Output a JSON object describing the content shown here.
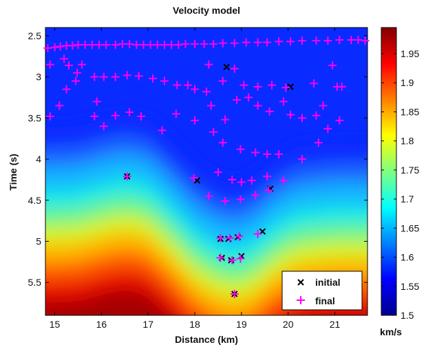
{
  "chart_data": {
    "type": "heatmap",
    "title": "Velocity model",
    "xlabel": "Distance (km)",
    "ylabel": "Time (s)",
    "xlim": [
      14.8,
      21.7
    ],
    "ylim": [
      2.4,
      5.9
    ],
    "y_reversed": true,
    "x_ticks": [
      15,
      16,
      17,
      18,
      19,
      20,
      21
    ],
    "y_ticks": [
      2.5,
      3,
      3.5,
      4,
      4.5,
      5,
      5.5
    ],
    "colorbar": {
      "range": [
        1.5,
        1.995
      ],
      "ticks": [
        1.5,
        1.55,
        1.6,
        1.65,
        1.7,
        1.75,
        1.8,
        1.85,
        1.9,
        1.95
      ],
      "unit_label": "km/s",
      "colormap": "jet"
    },
    "legend": {
      "position": "bottom-right",
      "entries": [
        {
          "label": "initial",
          "marker": "x",
          "color": "#000000"
        },
        {
          "label": "final",
          "marker": "+",
          "color": "#ff00ff"
        }
      ]
    },
    "velocity_interface": [
      [
        14.8,
        4.82
      ],
      [
        15.5,
        4.8
      ],
      [
        16.0,
        4.72
      ],
      [
        16.5,
        4.66
      ],
      [
        17.0,
        4.72
      ],
      [
        17.5,
        4.98
      ],
      [
        18.0,
        5.28
      ],
      [
        18.5,
        5.45
      ],
      [
        18.9,
        5.5
      ],
      [
        19.3,
        5.4
      ],
      [
        19.7,
        5.2
      ],
      [
        20.2,
        5.05
      ],
      [
        21.0,
        5.0
      ],
      [
        21.7,
        5.0
      ]
    ],
    "series": [
      {
        "name": "initial",
        "marker": "x",
        "points": [
          [
            16.55,
            4.21
          ],
          [
            18.05,
            4.26
          ],
          [
            18.68,
            2.88
          ],
          [
            20.05,
            3.12
          ],
          [
            19.62,
            4.36
          ],
          [
            18.55,
            4.97
          ],
          [
            18.72,
            4.97
          ],
          [
            18.92,
            4.95
          ],
          [
            19.45,
            4.88
          ],
          [
            18.58,
            5.2
          ],
          [
            18.78,
            5.23
          ],
          [
            19.0,
            5.18
          ],
          [
            18.85,
            5.64
          ]
        ]
      },
      {
        "name": "final",
        "marker": "+",
        "points": [
          [
            14.85,
            2.65
          ],
          [
            15.0,
            2.64
          ],
          [
            15.12,
            2.63
          ],
          [
            15.25,
            2.62
          ],
          [
            15.38,
            2.62
          ],
          [
            15.5,
            2.61
          ],
          [
            15.65,
            2.61
          ],
          [
            15.8,
            2.61
          ],
          [
            15.95,
            2.61
          ],
          [
            16.1,
            2.61
          ],
          [
            16.3,
            2.61
          ],
          [
            16.45,
            2.6
          ],
          [
            16.6,
            2.6
          ],
          [
            16.75,
            2.61
          ],
          [
            16.9,
            2.61
          ],
          [
            17.05,
            2.61
          ],
          [
            17.2,
            2.61
          ],
          [
            17.35,
            2.61
          ],
          [
            17.5,
            2.61
          ],
          [
            17.65,
            2.61
          ],
          [
            17.8,
            2.6
          ],
          [
            18.0,
            2.6
          ],
          [
            18.2,
            2.6
          ],
          [
            18.4,
            2.6
          ],
          [
            18.6,
            2.59
          ],
          [
            18.85,
            2.59
          ],
          [
            19.1,
            2.58
          ],
          [
            19.35,
            2.58
          ],
          [
            19.55,
            2.58
          ],
          [
            19.8,
            2.57
          ],
          [
            20.05,
            2.57
          ],
          [
            20.3,
            2.56
          ],
          [
            20.6,
            2.56
          ],
          [
            20.85,
            2.56
          ],
          [
            21.1,
            2.55
          ],
          [
            21.35,
            2.55
          ],
          [
            21.5,
            2.55
          ],
          [
            21.65,
            2.56
          ],
          [
            14.9,
            2.85
          ],
          [
            15.3,
            2.86
          ],
          [
            15.48,
            2.95
          ],
          [
            15.58,
            2.85
          ],
          [
            15.2,
            2.78
          ],
          [
            15.45,
            3.05
          ],
          [
            15.25,
            3.15
          ],
          [
            15.85,
            3.0
          ],
          [
            16.05,
            3.0
          ],
          [
            16.3,
            3.0
          ],
          [
            16.55,
            2.98
          ],
          [
            16.8,
            2.99
          ],
          [
            17.1,
            3.02
          ],
          [
            17.35,
            3.05
          ],
          [
            17.62,
            3.1
          ],
          [
            17.85,
            3.1
          ],
          [
            18.0,
            3.15
          ],
          [
            18.25,
            3.18
          ],
          [
            18.6,
            3.05
          ],
          [
            18.85,
            2.9
          ],
          [
            18.3,
            2.85
          ],
          [
            19.05,
            3.1
          ],
          [
            19.35,
            3.12
          ],
          [
            19.65,
            3.1
          ],
          [
            19.95,
            3.13
          ],
          [
            20.55,
            3.08
          ],
          [
            20.95,
            2.86
          ],
          [
            21.05,
            3.12
          ],
          [
            21.15,
            3.12
          ],
          [
            14.9,
            3.48
          ],
          [
            15.1,
            3.35
          ],
          [
            15.9,
            3.3
          ],
          [
            15.85,
            3.48
          ],
          [
            16.05,
            3.6
          ],
          [
            16.3,
            3.47
          ],
          [
            16.6,
            3.43
          ],
          [
            16.85,
            3.48
          ],
          [
            17.3,
            3.65
          ],
          [
            17.6,
            3.45
          ],
          [
            18.0,
            3.53
          ],
          [
            18.35,
            3.35
          ],
          [
            18.4,
            3.67
          ],
          [
            18.65,
            3.52
          ],
          [
            18.9,
            3.28
          ],
          [
            19.15,
            3.25
          ],
          [
            19.35,
            3.35
          ],
          [
            19.6,
            3.42
          ],
          [
            19.9,
            3.3
          ],
          [
            20.05,
            3.46
          ],
          [
            20.3,
            3.5
          ],
          [
            20.6,
            3.47
          ],
          [
            20.75,
            3.35
          ],
          [
            20.85,
            3.63
          ],
          [
            21.1,
            3.53
          ],
          [
            20.65,
            3.8
          ],
          [
            18.6,
            3.8
          ],
          [
            18.98,
            3.88
          ],
          [
            19.3,
            3.92
          ],
          [
            19.55,
            3.94
          ],
          [
            19.8,
            3.94
          ],
          [
            20.3,
            4.0
          ],
          [
            16.55,
            4.21
          ],
          [
            17.98,
            4.23
          ],
          [
            18.5,
            4.16
          ],
          [
            18.8,
            4.25
          ],
          [
            19.0,
            4.28
          ],
          [
            19.22,
            4.26
          ],
          [
            19.55,
            4.21
          ],
          [
            19.9,
            4.26
          ],
          [
            18.3,
            4.45
          ],
          [
            18.65,
            4.51
          ],
          [
            18.98,
            4.49
          ],
          [
            19.3,
            4.44
          ],
          [
            19.58,
            4.38
          ],
          [
            18.55,
            4.96
          ],
          [
            18.75,
            4.96
          ],
          [
            18.95,
            4.94
          ],
          [
            19.35,
            4.91
          ],
          [
            18.55,
            5.2
          ],
          [
            18.8,
            5.23
          ],
          [
            18.98,
            5.21
          ],
          [
            18.85,
            5.64
          ]
        ]
      }
    ]
  }
}
